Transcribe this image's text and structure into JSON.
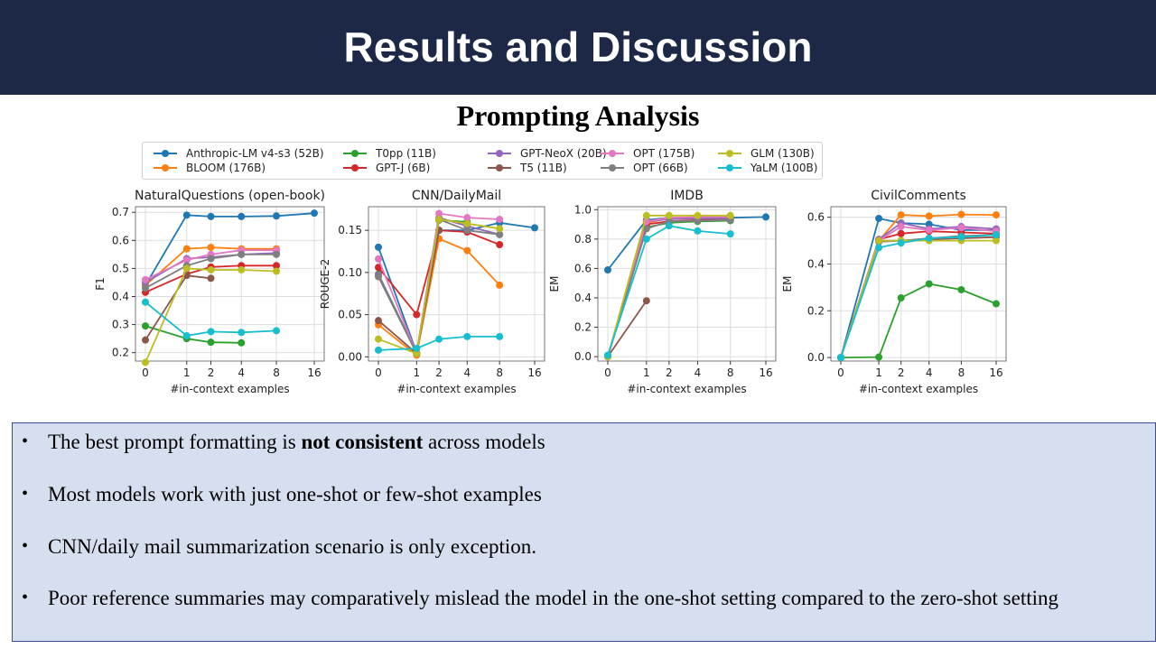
{
  "slide": {
    "title": "Results and Discussion",
    "subtitle": "Prompting Analysis"
  },
  "legend": [
    {
      "name": "Anthropic-LM v4-s3 (52B)",
      "color": "#1f77b4"
    },
    {
      "name": "BLOOM (176B)",
      "color": "#ff7f0e"
    },
    {
      "name": "T0pp (11B)",
      "color": "#2ca02c"
    },
    {
      "name": "GPT-J (6B)",
      "color": "#d62728"
    },
    {
      "name": "GPT-NeoX (20B)",
      "color": "#9467bd"
    },
    {
      "name": "T5 (11B)",
      "color": "#8c564b"
    },
    {
      "name": "OPT (175B)",
      "color": "#e377c2"
    },
    {
      "name": "OPT (66B)",
      "color": "#7f7f7f"
    },
    {
      "name": "GLM (130B)",
      "color": "#bcbd22"
    },
    {
      "name": "YaLM (100B)",
      "color": "#17becf"
    }
  ],
  "chart_data": [
    {
      "type": "line",
      "title": "NaturalQuestions (open-book)",
      "xlabel": "#in-context examples",
      "ylabel": "F1",
      "xticks": [
        "0",
        "1",
        "2",
        "4",
        "8",
        "16"
      ],
      "yticks": [
        "0.2",
        "0.3",
        "0.4",
        "0.5",
        "0.6",
        "0.7"
      ],
      "ylim": [
        0.17,
        0.72
      ],
      "grid": true,
      "series": [
        {
          "name": "Anthropic-LM v4-s3 (52B)",
          "color": "#1f77b4",
          "x": [
            0,
            1,
            2,
            4,
            8,
            16
          ],
          "y": [
            0.44,
            0.69,
            0.685,
            0.685,
            0.687,
            0.697
          ]
        },
        {
          "name": "BLOOM (176B)",
          "color": "#ff7f0e",
          "x": [
            0,
            1,
            2,
            4,
            8
          ],
          "y": [
            0.44,
            0.57,
            0.575,
            0.57,
            0.57
          ]
        },
        {
          "name": "T0pp (11B)",
          "color": "#2ca02c",
          "x": [
            0,
            1,
            2,
            4
          ],
          "y": [
            0.295,
            0.25,
            0.237,
            0.235
          ]
        },
        {
          "name": "GPT-J (6B)",
          "color": "#d62728",
          "x": [
            0,
            1,
            2,
            4,
            8
          ],
          "y": [
            0.415,
            0.48,
            0.505,
            0.51,
            0.51
          ]
        },
        {
          "name": "GPT-NeoX (20B)",
          "color": "#9467bd",
          "x": [
            0,
            1,
            2,
            4,
            8
          ],
          "y": [
            0.45,
            0.535,
            0.54,
            0.55,
            0.555
          ]
        },
        {
          "name": "T5 (11B)",
          "color": "#8c564b",
          "x": [
            0,
            1,
            2
          ],
          "y": [
            0.245,
            0.475,
            0.465
          ]
        },
        {
          "name": "OPT (175B)",
          "color": "#e377c2",
          "x": [
            0,
            1,
            2,
            4,
            8
          ],
          "y": [
            0.46,
            0.53,
            0.55,
            0.565,
            0.565
          ]
        },
        {
          "name": "OPT (66B)",
          "color": "#7f7f7f",
          "x": [
            0,
            1,
            2,
            4,
            8
          ],
          "y": [
            0.43,
            0.51,
            0.535,
            0.55,
            0.55
          ]
        },
        {
          "name": "GLM (130B)",
          "color": "#bcbd22",
          "x": [
            0,
            1,
            2,
            4,
            8
          ],
          "y": [
            0.165,
            0.5,
            0.495,
            0.495,
            0.49
          ]
        },
        {
          "name": "YaLM (100B)",
          "color": "#17becf",
          "x": [
            0,
            1,
            2,
            4,
            8
          ],
          "y": [
            0.38,
            0.26,
            0.275,
            0.272,
            0.278
          ]
        }
      ]
    },
    {
      "type": "line",
      "title": "CNN/DailyMail",
      "xlabel": "#in-context examples",
      "ylabel": "ROUGE-2",
      "xticks": [
        "0",
        "1",
        "2",
        "4",
        "8",
        "16"
      ],
      "yticks": [
        "0.00",
        "0.05",
        "0.10",
        "0.15"
      ],
      "ylim": [
        -0.005,
        0.178
      ],
      "grid": true,
      "series": [
        {
          "name": "Anthropic-LM v4-s3 (52B)",
          "color": "#1f77b4",
          "x": [
            0,
            1,
            2,
            4,
            8,
            16
          ],
          "y": [
            0.13,
            0.005,
            0.15,
            0.15,
            0.159,
            0.153
          ]
        },
        {
          "name": "BLOOM (176B)",
          "color": "#ff7f0e",
          "x": [
            0,
            1,
            2,
            4,
            8
          ],
          "y": [
            0.038,
            0.002,
            0.14,
            0.126,
            0.085
          ]
        },
        {
          "name": "T0pp (11B)",
          "color": "#2ca02c",
          "x": [
            0,
            1,
            2,
            4
          ],
          "y": [
            0.098,
            0.005,
            0.162,
            0.16
          ]
        },
        {
          "name": "GPT-J (6B)",
          "color": "#d62728",
          "x": [
            0,
            1,
            2,
            4,
            8
          ],
          "y": [
            0.106,
            0.05,
            0.15,
            0.148,
            0.133
          ]
        },
        {
          "name": "GPT-NeoX (20B)",
          "color": "#9467bd",
          "x": [
            0,
            1,
            2,
            4,
            8
          ],
          "y": [
            0.097,
            0.004,
            0.165,
            0.155,
            0.145
          ]
        },
        {
          "name": "T5 (11B)",
          "color": "#8c564b",
          "x": [
            0,
            1,
            2
          ],
          "y": [
            0.043,
            0.004,
            0.15
          ]
        },
        {
          "name": "OPT (175B)",
          "color": "#e377c2",
          "x": [
            0,
            1,
            2,
            4,
            8
          ],
          "y": [
            0.116,
            0.004,
            0.17,
            0.165,
            0.163
          ]
        },
        {
          "name": "OPT (66B)",
          "color": "#7f7f7f",
          "x": [
            0,
            1,
            2,
            4,
            8
          ],
          "y": [
            0.095,
            0.004,
            0.163,
            0.15,
            0.145
          ]
        },
        {
          "name": "GLM (130B)",
          "color": "#bcbd22",
          "x": [
            0,
            1,
            2,
            4,
            8
          ],
          "y": [
            0.021,
            0.004,
            0.163,
            0.158,
            0.152
          ]
        },
        {
          "name": "YaLM (100B)",
          "color": "#17becf",
          "x": [
            0,
            1,
            2,
            4,
            8
          ],
          "y": [
            0.008,
            0.01,
            0.021,
            0.024,
            0.024
          ]
        }
      ]
    },
    {
      "type": "line",
      "title": "IMDB",
      "xlabel": "#in-context examples",
      "ylabel": "EM",
      "xticks": [
        "0",
        "1",
        "2",
        "4",
        "8",
        "16"
      ],
      "yticks": [
        "0.0",
        "0.2",
        "0.4",
        "0.6",
        "0.8",
        "1.0"
      ],
      "ylim": [
        -0.03,
        1.02
      ],
      "grid": true,
      "series": [
        {
          "name": "Anthropic-LM v4-s3 (52B)",
          "color": "#1f77b4",
          "x": [
            0,
            1,
            2,
            4,
            8,
            16
          ],
          "y": [
            0.59,
            0.93,
            0.945,
            0.945,
            0.945,
            0.95
          ]
        },
        {
          "name": "BLOOM (176B)",
          "color": "#ff7f0e",
          "x": [
            0,
            1,
            2,
            4,
            8
          ],
          "y": [
            0.0,
            0.91,
            0.94,
            0.95,
            0.955
          ]
        },
        {
          "name": "T0pp (11B)",
          "color": "#2ca02c",
          "x": [
            0,
            1,
            2,
            4,
            8
          ],
          "y": [
            0.0,
            0.88,
            0.91,
            0.92,
            0.925
          ]
        },
        {
          "name": "GPT-J (6B)",
          "color": "#d62728",
          "x": [
            0,
            1,
            2,
            4,
            8
          ],
          "y": [
            0.0,
            0.9,
            0.92,
            0.93,
            0.935
          ]
        },
        {
          "name": "GPT-NeoX (20B)",
          "color": "#9467bd",
          "x": [
            0,
            1,
            2,
            4,
            8
          ],
          "y": [
            0.0,
            0.92,
            0.935,
            0.94,
            0.94
          ]
        },
        {
          "name": "T5 (11B)",
          "color": "#8c564b",
          "x": [
            0,
            1
          ],
          "y": [
            0.0,
            0.38
          ]
        },
        {
          "name": "OPT (175B)",
          "color": "#e377c2",
          "x": [
            0,
            1,
            2,
            4,
            8
          ],
          "y": [
            0.0,
            0.92,
            0.945,
            0.95,
            0.95
          ]
        },
        {
          "name": "OPT (66B)",
          "color": "#7f7f7f",
          "x": [
            0,
            1,
            2,
            4,
            8
          ],
          "y": [
            0.0,
            0.87,
            0.92,
            0.925,
            0.93
          ]
        },
        {
          "name": "GLM (130B)",
          "color": "#bcbd22",
          "x": [
            0,
            1,
            2,
            4,
            8
          ],
          "y": [
            0.0,
            0.96,
            0.96,
            0.96,
            0.96
          ]
        },
        {
          "name": "YaLM (100B)",
          "color": "#17becf",
          "x": [
            0,
            1,
            2,
            4,
            8
          ],
          "y": [
            0.01,
            0.8,
            0.89,
            0.855,
            0.835
          ]
        }
      ]
    },
    {
      "type": "line",
      "title": "CivilComments",
      "xlabel": "#in-context examples",
      "ylabel": "EM",
      "xticks": [
        "0",
        "1",
        "2",
        "4",
        "8",
        "16"
      ],
      "yticks": [
        "0.0",
        "0.2",
        "0.4",
        "0.6"
      ],
      "ylim": [
        -0.015,
        0.645
      ],
      "grid": true,
      "series": [
        {
          "name": "Anthropic-LM v4-s3 (52B)",
          "color": "#1f77b4",
          "x": [
            0,
            1,
            2,
            4,
            8,
            16
          ],
          "y": [
            0.0,
            0.595,
            0.575,
            0.57,
            0.545,
            0.545
          ]
        },
        {
          "name": "BLOOM (176B)",
          "color": "#ff7f0e",
          "x": [
            0,
            1,
            2,
            4,
            8,
            16
          ],
          "y": [
            0.0,
            0.5,
            0.61,
            0.605,
            0.612,
            0.61
          ]
        },
        {
          "name": "T0pp (11B)",
          "color": "#2ca02c",
          "x": [
            0,
            1,
            2,
            4,
            8,
            16
          ],
          "y": [
            0.0,
            0.002,
            0.255,
            0.315,
            0.29,
            0.23
          ]
        },
        {
          "name": "GPT-J (6B)",
          "color": "#d62728",
          "x": [
            0,
            1,
            2,
            4,
            8,
            16
          ],
          "y": [
            0.0,
            0.505,
            0.53,
            0.54,
            0.535,
            0.53
          ]
        },
        {
          "name": "GPT-NeoX (20B)",
          "color": "#9467bd",
          "x": [
            0,
            1,
            2,
            4,
            8,
            16
          ],
          "y": [
            0.0,
            0.505,
            0.575,
            0.55,
            0.56,
            0.55
          ]
        },
        {
          "name": "T5 (11B)",
          "color": "#8c564b",
          "x": [
            0,
            1,
            2,
            4,
            8,
            16
          ],
          "y": [
            0.0,
            0.5,
            0.5,
            0.505,
            0.51,
            0.515
          ]
        },
        {
          "name": "OPT (175B)",
          "color": "#e377c2",
          "x": [
            0,
            1,
            2,
            4,
            8,
            16
          ],
          "y": [
            0.0,
            0.5,
            0.56,
            0.545,
            0.555,
            0.54
          ]
        },
        {
          "name": "OPT (66B)",
          "color": "#7f7f7f",
          "x": [
            0,
            1,
            2,
            4,
            8,
            16
          ],
          "y": [
            0.0,
            0.495,
            0.5,
            0.51,
            0.52,
            0.525
          ]
        },
        {
          "name": "GLM (130B)",
          "color": "#bcbd22",
          "x": [
            0,
            1,
            2,
            4,
            8,
            16
          ],
          "y": [
            0.0,
            0.5,
            0.5,
            0.5,
            0.5,
            0.5
          ]
        },
        {
          "name": "YaLM (100B)",
          "color": "#17becf",
          "x": [
            0,
            1,
            2,
            4,
            8,
            16
          ],
          "y": [
            0.0,
            0.47,
            0.49,
            0.51,
            0.515,
            0.525
          ]
        }
      ]
    }
  ],
  "bullets": [
    {
      "pre": "The best prompt formatting is ",
      "bold": "not consistent",
      "post": " across models"
    },
    {
      "pre": "Most models work with just one-shot or few-shot examples",
      "bold": "",
      "post": ""
    },
    {
      "pre": "CNN/daily mail summarization  scenario is only exception.",
      "bold": "",
      "post": ""
    },
    {
      "pre": "Poor reference summaries  may comparatively  mislead the model in the one-shot setting compared to the zero-shot setting",
      "bold": "",
      "post": ""
    }
  ]
}
